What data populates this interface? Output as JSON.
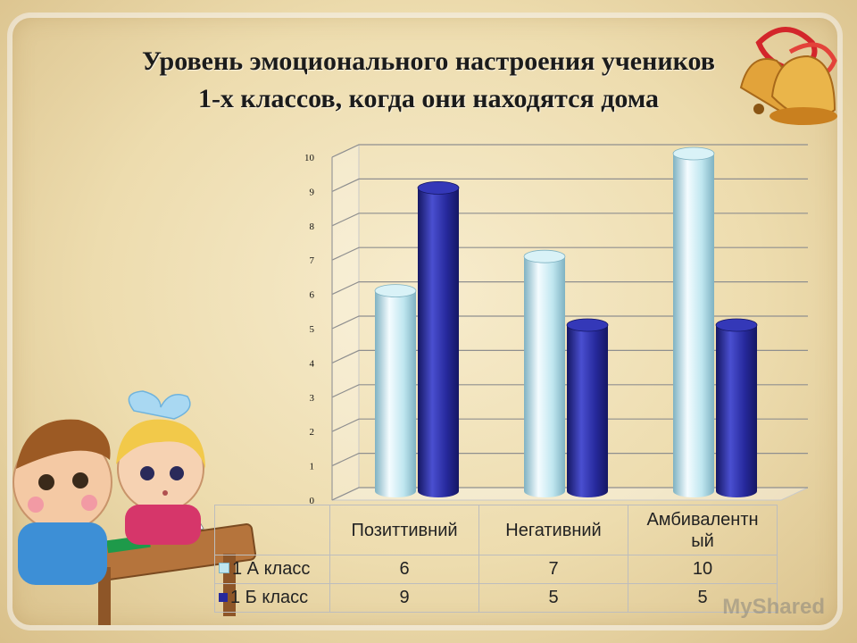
{
  "slide": {
    "title_line1": "Уровень эмоционального настроения учеников",
    "title_line2": "1-х классов, когда они находятся дома",
    "watermark": "MyShared"
  },
  "chart_data": {
    "type": "bar",
    "title": "",
    "categories": [
      "Позиттивний",
      "Негативний",
      "Амбивалентный"
    ],
    "category_display": [
      "Позиттивний",
      "Негативний",
      "Амбивалентн ый"
    ],
    "series": [
      {
        "name": "1 А класс",
        "values": [
          6,
          7,
          10
        ],
        "color": "#bfe6ef"
      },
      {
        "name": "1 Б класс",
        "values": [
          9,
          5,
          5
        ],
        "color": "#26299c"
      }
    ],
    "ylim": [
      0,
      10
    ],
    "yticks": [
      "0",
      "1",
      "2",
      "3",
      "4",
      "5",
      "6",
      "7",
      "8",
      "9",
      "10"
    ],
    "grid": true,
    "legend": "table-below",
    "style": "3d-cylinder"
  }
}
